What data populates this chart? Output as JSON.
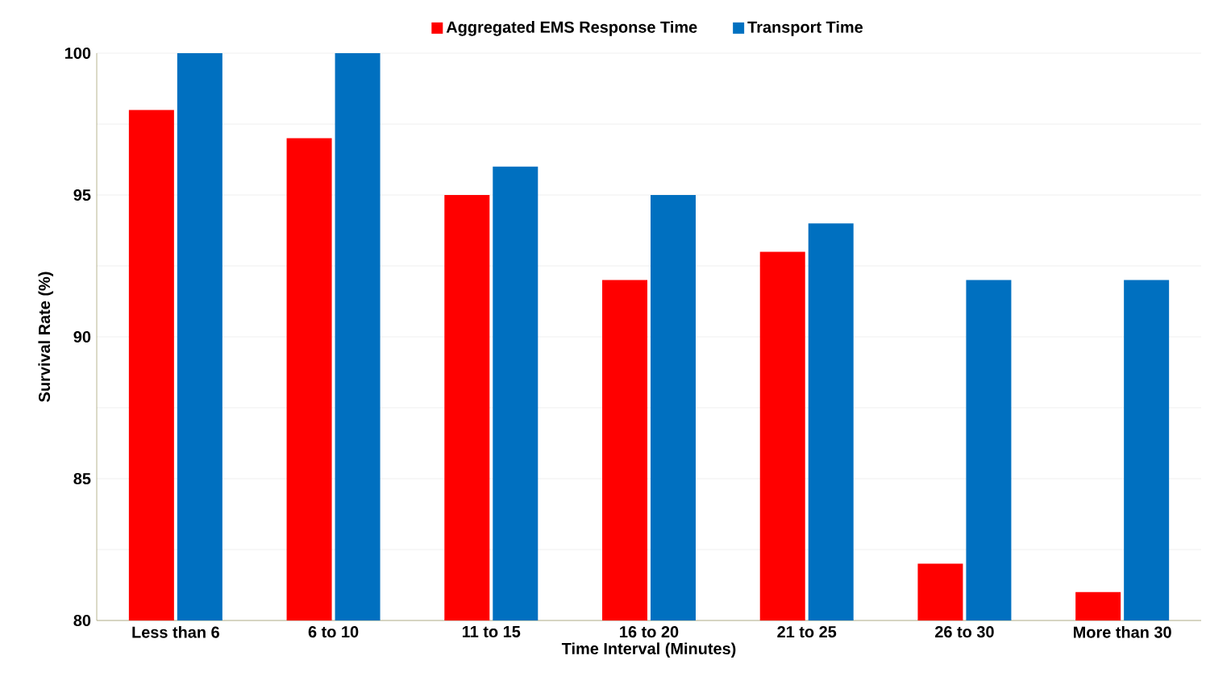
{
  "chart_data": {
    "type": "bar",
    "xlabel": "Time Interval (Minutes)",
    "ylabel": "Survival Rate (%)",
    "categories": [
      "Less than 6",
      "6 to 10",
      "11 to 15",
      "16 to 20",
      "21 to 25",
      "26 to 30",
      "More than 30"
    ],
    "series": [
      {
        "name": "Aggregated EMS Response Time",
        "color": "#ff0000",
        "values": [
          98,
          97,
          95,
          92,
          93,
          82,
          81
        ]
      },
      {
        "name": "Transport Time",
        "color": "#0070c0",
        "values": [
          100,
          100,
          96,
          95,
          94,
          92,
          92
        ]
      }
    ],
    "ylim": [
      80,
      100
    ],
    "yticks": [
      80,
      {
        "value": 82.5,
        "label": null
      },
      85,
      {
        "value": 87.5,
        "label": null
      },
      90,
      {
        "value": 92.5,
        "label": null
      },
      95,
      {
        "value": 97.5,
        "label": null
      },
      100
    ],
    "grid": "y",
    "legend": "top"
  }
}
